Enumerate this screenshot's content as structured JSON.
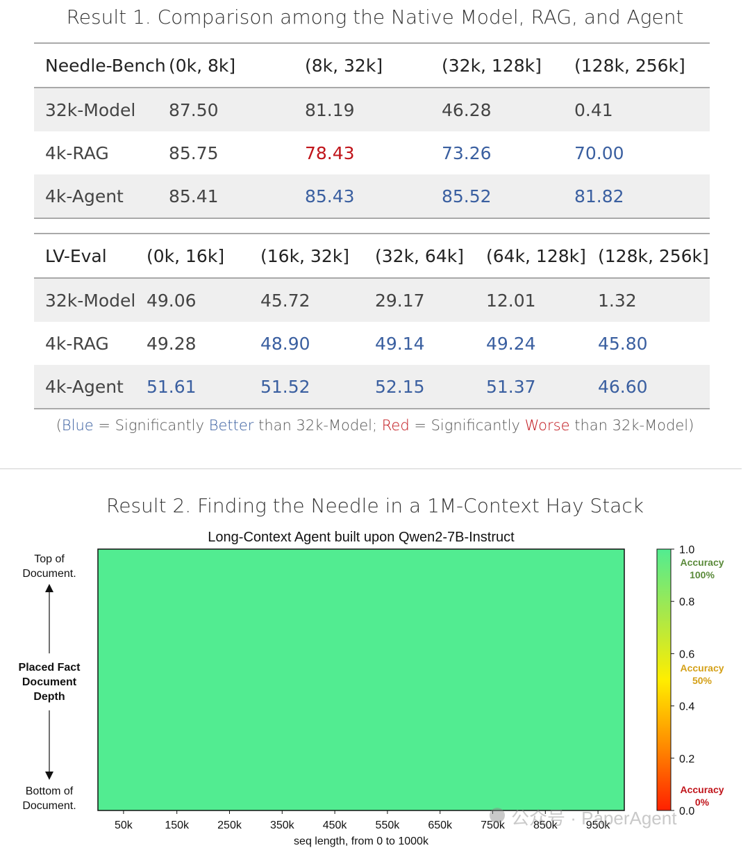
{
  "result1": {
    "title": "Result 1. Comparison among the Native Model, RAG, and Agent",
    "table1": {
      "headers": [
        "Needle-Bench",
        "(0k, 8k]",
        "(8k, 32k]",
        "(32k, 128k]",
        "(128k, 256k]"
      ],
      "rows": [
        {
          "name": "32k-Model",
          "values": [
            "87.50",
            "81.19",
            "46.28",
            "0.41"
          ]
        },
        {
          "name": "4k-RAG",
          "values": [
            "85.75",
            "78.43",
            "73.26",
            "70.00"
          ]
        },
        {
          "name": "4k-Agent",
          "values": [
            "85.41",
            "85.43",
            "85.52",
            "81.82"
          ]
        }
      ]
    },
    "table2": {
      "headers": [
        "LV-Eval",
        "(0k, 16k]",
        "(16k, 32k]",
        "(32k, 64k]",
        "(64k, 128k]",
        "(128k, 256k]"
      ],
      "rows": [
        {
          "name": "32k-Model",
          "values": [
            "49.06",
            "45.72",
            "29.17",
            "12.01",
            "1.32"
          ]
        },
        {
          "name": "4k-RAG",
          "values": [
            "49.28",
            "48.90",
            "49.14",
            "49.24",
            "45.80"
          ]
        },
        {
          "name": "4k-Agent",
          "values": [
            "51.61",
            "51.52",
            "52.15",
            "51.37",
            "46.60"
          ]
        }
      ]
    },
    "note": {
      "open": "(",
      "blue_word": "Blue",
      "eq1": " = Significantly ",
      "better": "Better",
      "than1": " than 32k-Model; ",
      "red_word": "Red",
      "eq2": " = Significantly ",
      "worse": "Worse",
      "than2": " than 32k-Model)"
    },
    "colors": {
      "blue": "#3a5fa0",
      "red": "#c0141a"
    }
  },
  "result2": {
    "title": "Result 2. Finding the Needle in a 1M-Context Hay Stack",
    "left_labels": {
      "top": [
        "Top of",
        "Document."
      ],
      "middle": [
        "Placed Fact",
        "Document",
        "Depth"
      ],
      "bottom": [
        "Bottom of",
        "Document."
      ]
    },
    "colorbar_labels": {
      "top": [
        "Accuracy",
        "100%"
      ],
      "mid": [
        "Accuracy",
        "50%"
      ],
      "bottom": [
        "Accuracy",
        "0%"
      ]
    },
    "watermark": "公众号 · PaperAgent"
  },
  "chart_data": {
    "type": "heatmap",
    "title": "Long-Context Agent built upon Qwen2-7B-Instruct",
    "xlabel": "seq length, from 0 to 1000k",
    "ylabel": "",
    "x_ticks": [
      "50k",
      "150k",
      "250k",
      "350k",
      "450k",
      "550k",
      "650k",
      "750k",
      "850k",
      "950k"
    ],
    "values_all": 1.0,
    "cell_color": "#52ec91",
    "colorbar": {
      "range": [
        0.0,
        1.0
      ],
      "ticks": [
        "1.0",
        "0.8",
        "0.6",
        "0.4",
        "0.2",
        "0.0"
      ],
      "colors": [
        "#ff2000",
        "#ff8c00",
        "#ffee00",
        "#a8e84a",
        "#52ec91"
      ]
    }
  }
}
